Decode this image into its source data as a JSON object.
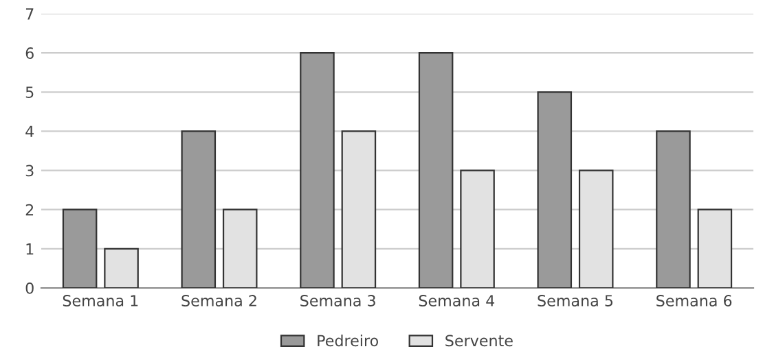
{
  "chart_data": {
    "type": "bar",
    "categories": [
      "Semana 1",
      "Semana 2",
      "Semana 3",
      "Semana 4",
      "Semana 5",
      "Semana 6"
    ],
    "series": [
      {
        "name": "Pedreiro",
        "color": "#9a9a9a",
        "values": [
          2,
          4,
          6,
          6,
          5,
          4
        ]
      },
      {
        "name": "Servente",
        "color": "#e2e2e2",
        "values": [
          1,
          2,
          4,
          3,
          3,
          2
        ]
      }
    ],
    "ylim": [
      0,
      7
    ],
    "yticks": [
      0,
      1,
      2,
      3,
      4,
      5,
      6,
      7
    ],
    "grid": "y",
    "legend": "bottom"
  }
}
